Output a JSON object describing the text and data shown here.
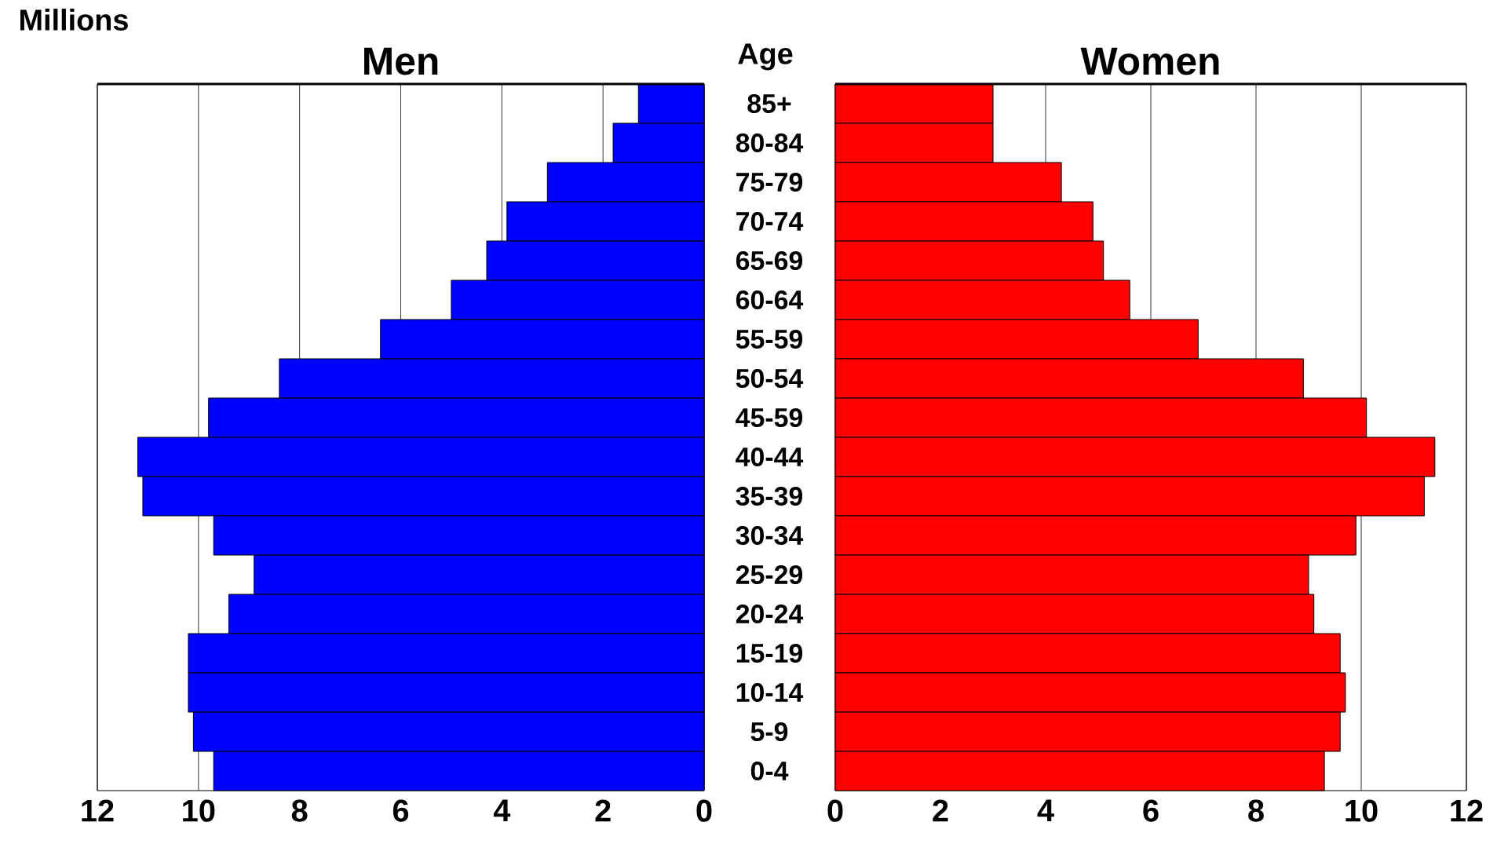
{
  "chart_data": [
    {
      "type": "bar",
      "orientation": "horizontal",
      "title": "Men",
      "ylabel": "Age",
      "annotations": [
        "Millions"
      ],
      "categories": [
        "85+",
        "80-84",
        "75-79",
        "70-74",
        "65-69",
        "60-64",
        "55-59",
        "50-54",
        "45-59",
        "40-44",
        "35-39",
        "30-34",
        "25-29",
        "20-24",
        "15-19",
        "10-14",
        "5-9",
        "0-4"
      ],
      "values": [
        1.3,
        1.8,
        3.1,
        3.9,
        4.3,
        5.0,
        6.4,
        8.4,
        9.8,
        11.2,
        11.1,
        9.7,
        8.9,
        9.4,
        10.2,
        10.2,
        10.1,
        9.7
      ],
      "color": "#0000ff",
      "xlim": [
        12,
        0
      ],
      "xticks": [
        12,
        10,
        8,
        6,
        4,
        2,
        0
      ],
      "grid": "x"
    },
    {
      "type": "bar",
      "orientation": "horizontal",
      "title": "Women",
      "categories": [
        null,
        null,
        null,
        null,
        null,
        null,
        null,
        null,
        null,
        null,
        null,
        null,
        null,
        null,
        null,
        null,
        null,
        null
      ],
      "values": [
        3.0,
        3.0,
        4.3,
        4.9,
        5.1,
        5.6,
        6.9,
        8.9,
        10.1,
        11.4,
        11.2,
        9.9,
        9.0,
        9.1,
        9.6,
        9.7,
        9.6,
        9.3
      ],
      "color": "#ff0000",
      "xlim": [
        0,
        12
      ],
      "xticks": [
        0,
        2,
        4,
        6,
        8,
        10,
        12
      ],
      "grid": "x",
      "tick_labels": "x"
    }
  ]
}
